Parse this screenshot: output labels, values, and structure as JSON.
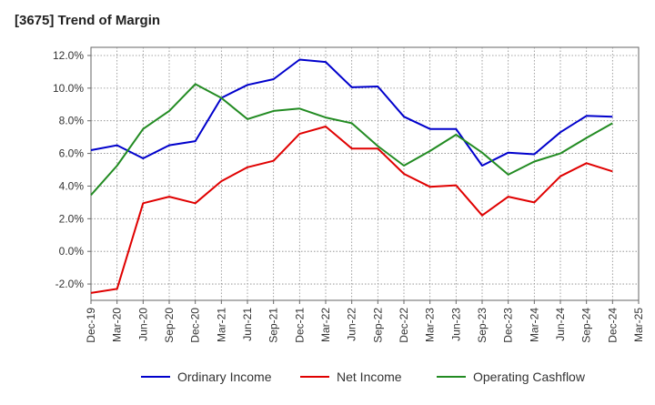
{
  "title": "[3675]  Trend of Margin",
  "chart_data": {
    "type": "line",
    "title": "[3675]  Trend of Margin",
    "xlabel": "",
    "ylabel": "",
    "categories": [
      "Dec-19",
      "Mar-20",
      "Jun-20",
      "Sep-20",
      "Dec-20",
      "Mar-21",
      "Jun-21",
      "Sep-21",
      "Dec-21",
      "Mar-22",
      "Jun-22",
      "Sep-22",
      "Dec-22",
      "Mar-23",
      "Jun-23",
      "Sep-23",
      "Dec-23",
      "Mar-24",
      "Jun-24",
      "Sep-24",
      "Dec-24",
      "Mar-25"
    ],
    "ylim": [
      -3.0,
      12.5
    ],
    "yticks": [
      -2.0,
      0.0,
      2.0,
      4.0,
      6.0,
      8.0,
      10.0,
      12.0
    ],
    "ytick_labels": [
      "-2.0%",
      "0.0%",
      "2.0%",
      "4.0%",
      "6.0%",
      "8.0%",
      "10.0%",
      "12.0%"
    ],
    "grid": true,
    "legend_position": "bottom",
    "series": [
      {
        "name": "Ordinary Income",
        "color": "#0000cc",
        "values": [
          6.2,
          6.5,
          5.7,
          6.5,
          6.75,
          9.4,
          10.2,
          10.55,
          11.75,
          11.6,
          10.05,
          10.1,
          8.25,
          7.5,
          7.5,
          5.25,
          6.05,
          5.95,
          7.3,
          8.3,
          8.25,
          null
        ]
      },
      {
        "name": "Net Income",
        "color": "#e00000",
        "values": [
          -2.55,
          -2.3,
          2.95,
          3.35,
          2.95,
          4.3,
          5.15,
          5.55,
          7.2,
          7.65,
          6.3,
          6.3,
          4.75,
          3.95,
          4.05,
          2.2,
          3.35,
          3.0,
          4.6,
          5.4,
          4.9,
          null
        ]
      },
      {
        "name": "Operating Cashflow",
        "color": "#228b22",
        "values": [
          3.45,
          5.25,
          7.5,
          8.6,
          10.25,
          9.4,
          8.1,
          8.6,
          8.75,
          8.2,
          7.85,
          6.45,
          5.25,
          6.15,
          7.15,
          6.05,
          4.7,
          5.5,
          6.0,
          6.95,
          7.85,
          null
        ]
      }
    ]
  }
}
